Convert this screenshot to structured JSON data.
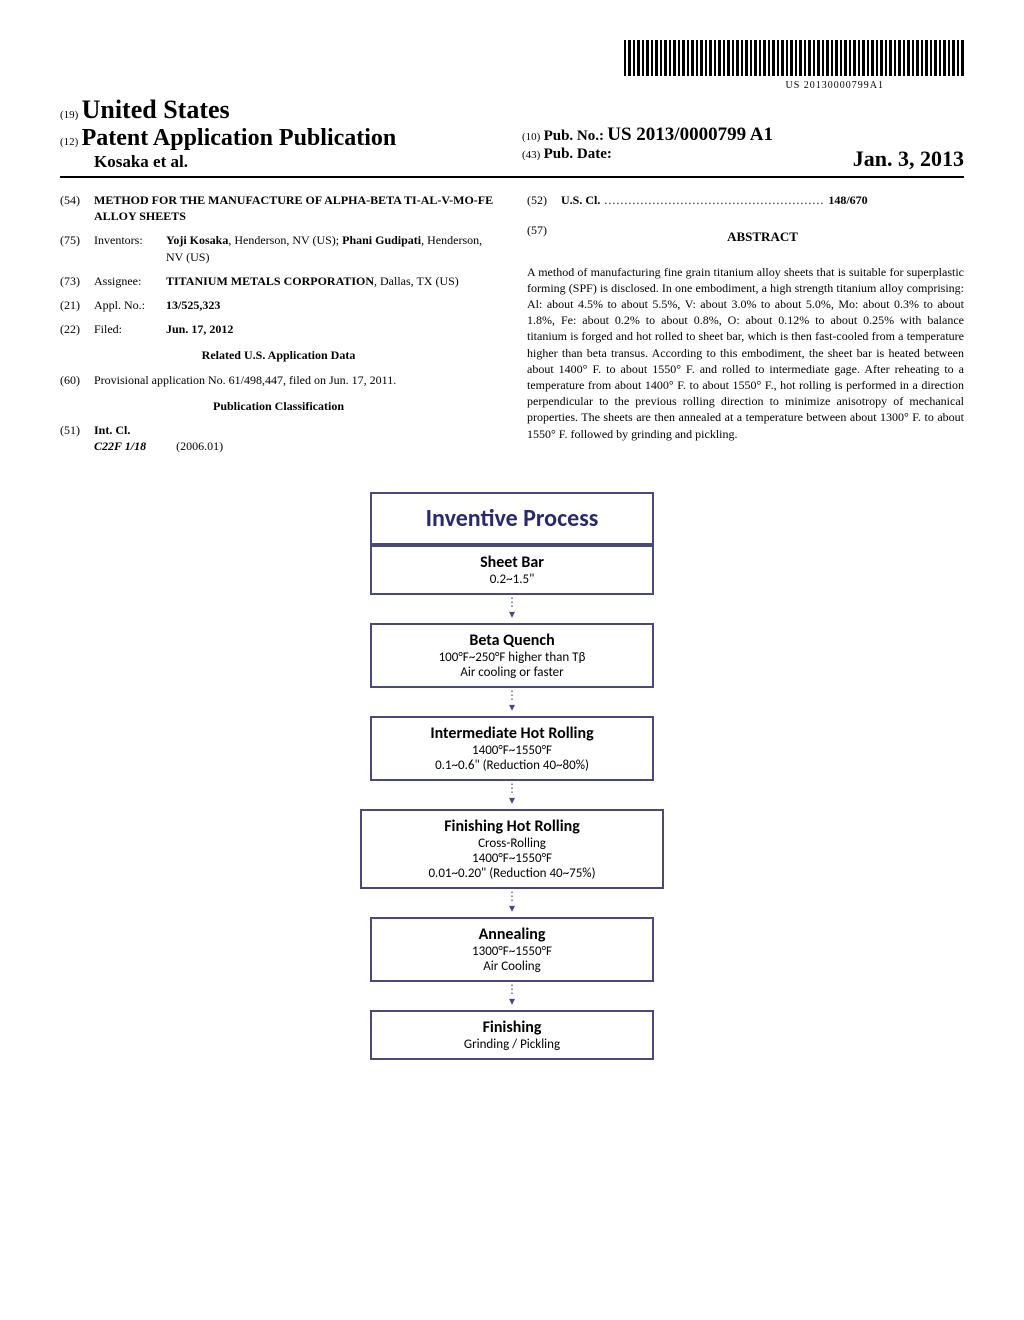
{
  "barcode_number": "US 20130000799A1",
  "header": {
    "num19": "(19)",
    "country": "United States",
    "num12": "(12)",
    "doc_type": "Patent Application Publication",
    "authors_line": "Kosaka et al.",
    "num10": "(10)",
    "pub_no_label": "Pub. No.:",
    "pub_no": "US 2013/0000799 A1",
    "num43": "(43)",
    "pub_date_label": "Pub. Date:",
    "pub_date": "Jan. 3, 2013"
  },
  "left": {
    "f54_num": "(54)",
    "f54_title": "METHOD FOR THE MANUFACTURE OF ALPHA-BETA TI-AL-V-MO-FE ALLOY SHEETS",
    "f75_num": "(75)",
    "f75_label": "Inventors:",
    "f75_text": "Yoji Kosaka, Henderson, NV (US); Phani Gudipati, Henderson, NV (US)",
    "f75_name1": "Yoji Kosaka",
    "f75_loc1": ", Henderson, NV (US);",
    "f75_name2": "Phani Gudipati",
    "f75_loc2": ", Henderson, NV (US)",
    "f73_num": "(73)",
    "f73_label": "Assignee:",
    "f73_name": "TITANIUM METALS CORPORATION",
    "f73_loc": ", Dallas, TX (US)",
    "f21_num": "(21)",
    "f21_label": "Appl. No.:",
    "f21_val": "13/525,323",
    "f22_num": "(22)",
    "f22_label": "Filed:",
    "f22_val": "Jun. 17, 2012",
    "related_heading": "Related U.S. Application Data",
    "f60_num": "(60)",
    "f60_text": "Provisional application No. 61/498,447, filed on Jun. 17, 2011.",
    "pubclass_heading": "Publication Classification",
    "f51_num": "(51)",
    "f51_label": "Int. Cl.",
    "f51_code": "C22F 1/18",
    "f51_year": "(2006.01)"
  },
  "right": {
    "f52_num": "(52)",
    "f52_label": "U.S. Cl.",
    "f52_dots": " ....................................................... ",
    "f52_val": "148/670",
    "f57_num": "(57)",
    "abstract_label": "ABSTRACT",
    "abstract": "A method of manufacturing fine grain titanium alloy sheets that is suitable for superplastic forming (SPF) is disclosed. In one embodiment, a high strength titanium alloy comprising: Al: about 4.5% to about 5.5%, V: about 3.0% to about 5.0%, Mo: about 0.3% to about 1.8%, Fe: about 0.2% to about 0.8%, O: about 0.12% to about 0.25% with balance titanium is forged and hot rolled to sheet bar, which is then fast-cooled from a temperature higher than beta transus. According to this embodiment, the sheet bar is heated between about 1400° F. to about 1550° F. and rolled to intermediate gage. After reheating to a temperature from about 1400° F. to about 1550° F., hot rolling is performed in a direction perpendicular to the previous rolling direction to minimize anisotropy of mechanical properties. The sheets are then annealed at a temperature between about 1300° F. to about 1550° F. followed by grinding and pickling."
  },
  "flowchart": {
    "title": "Inventive Process",
    "steps": [
      {
        "head": "Sheet Bar",
        "lines": [
          "0.2~1.5\""
        ]
      },
      {
        "head": "Beta Quench",
        "lines": [
          "100°F~250°F higher than Tβ",
          "Air cooling or faster"
        ]
      },
      {
        "head": "Intermediate Hot Rolling",
        "lines": [
          "1400°F~1550°F",
          "0.1~0.6\" (Reduction 40~80%)"
        ]
      },
      {
        "head": "Finishing Hot Rolling",
        "lines": [
          "Cross-Rolling",
          "1400°F~1550°F",
          "0.01~0.20\" (Reduction 40~75%)"
        ]
      },
      {
        "head": "Annealing",
        "lines": [
          "1300°F~1550°F",
          "Air Cooling"
        ]
      },
      {
        "head": "Finishing",
        "lines": [
          "Grinding / Pickling"
        ]
      }
    ],
    "box_border_color": "#4a4a7a",
    "title_color": "#2a2a6a"
  }
}
